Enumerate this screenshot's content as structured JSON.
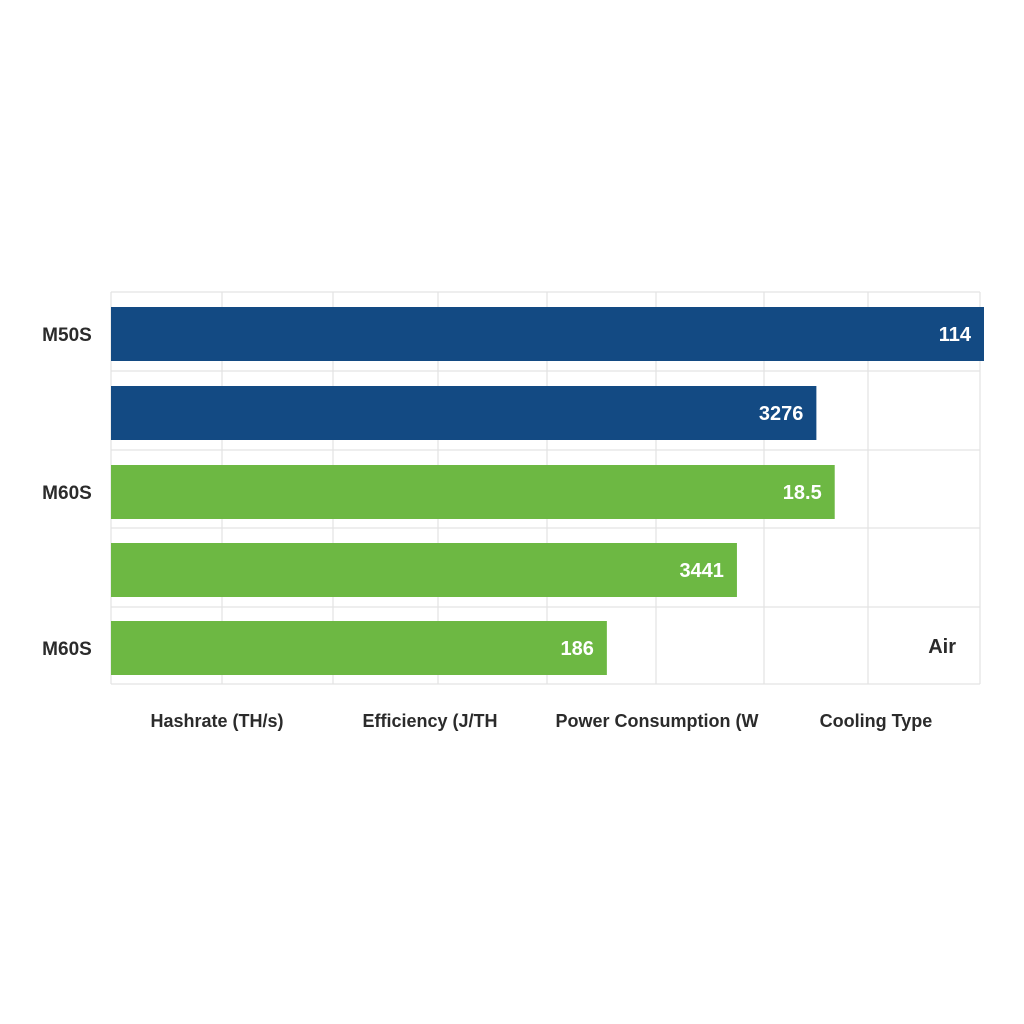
{
  "chart_data": {
    "type": "bar",
    "orientation": "horizontal",
    "title": "",
    "grid": true,
    "categories": [
      "Hashrate (TH/s)",
      "Efficiency (J/TH",
      "Power Consumption (W",
      "Cooling Type"
    ],
    "bars": [
      {
        "row_label": "M50S",
        "value": 114,
        "value_label": "114",
        "color": "#134a83"
      },
      {
        "row_label": "",
        "value": 3276,
        "value_label": "3276",
        "color": "#134a83"
      },
      {
        "row_label": "M60S",
        "value": 18.5,
        "value_label": "18.5",
        "color": "#6db843"
      },
      {
        "row_label": "",
        "value": 3441,
        "value_label": "3441",
        "color": "#6db843"
      },
      {
        "row_label": "M60S",
        "value": 186,
        "value_label": "186",
        "color": "#6db843"
      }
    ],
    "bar_fraction_of_axis": [
      1.0,
      0.808,
      0.829,
      0.717,
      0.568
    ],
    "annotation": "Air"
  }
}
